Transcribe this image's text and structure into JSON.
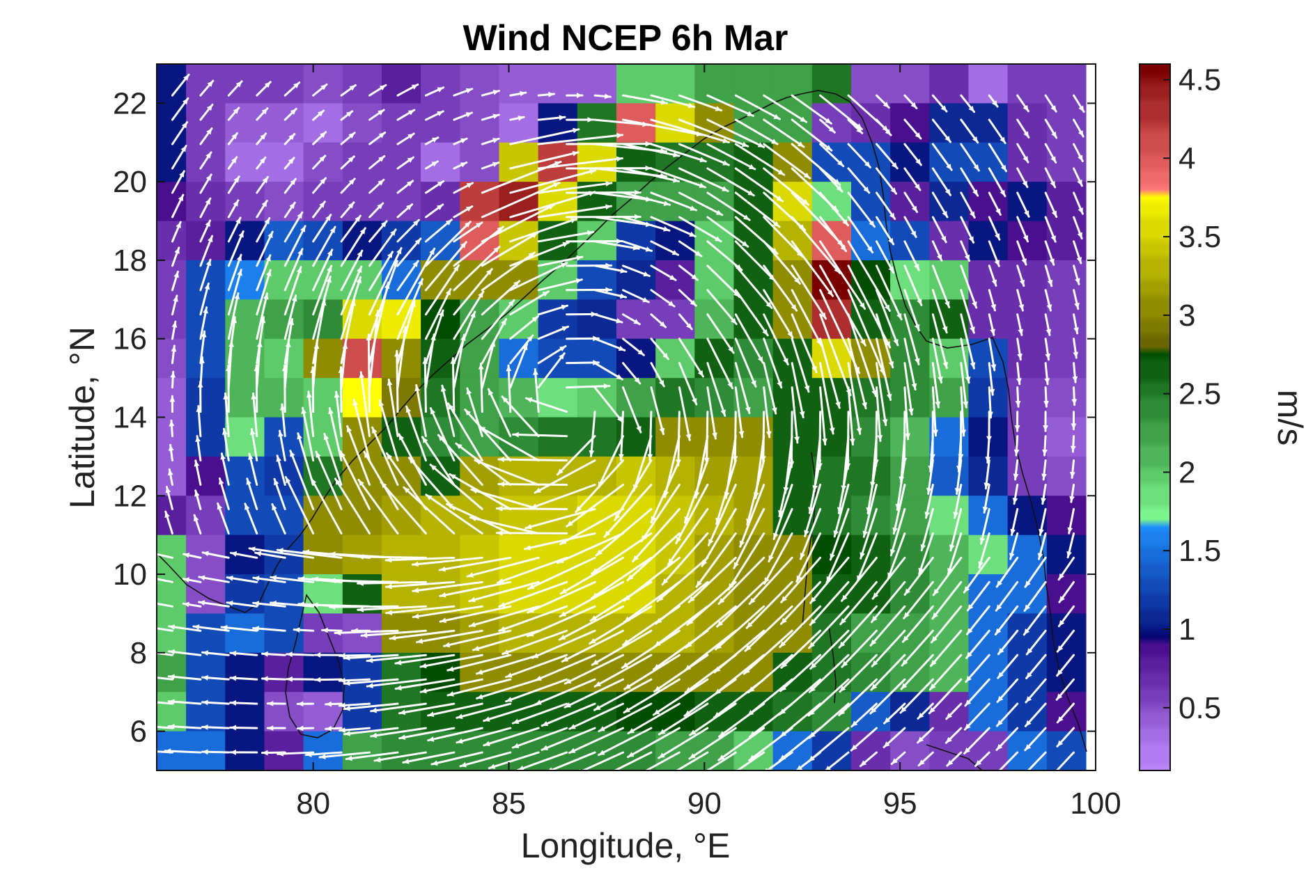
{
  "chart_data": {
    "type": "heatmap",
    "title": "Wind NCEP 6h Mar",
    "xlabel": "Longitude, °E",
    "ylabel": "Latitude, °N",
    "xlim": [
      76,
      100
    ],
    "ylim": [
      5,
      23
    ],
    "x_ticks": [
      80,
      85,
      90,
      95,
      100
    ],
    "y_ticks": [
      6,
      8,
      10,
      12,
      14,
      16,
      18,
      20,
      22
    ],
    "x_tick_labels": [
      "80",
      "85",
      "90",
      "95",
      "100"
    ],
    "y_tick_labels": [
      "6",
      "8",
      "10",
      "12",
      "14",
      "16",
      "18",
      "20",
      "22"
    ],
    "grid": false,
    "colorbar": {
      "label": "m/s",
      "range": [
        0.1,
        4.6
      ],
      "ticks": [
        0.5,
        1,
        1.5,
        2,
        2.5,
        3,
        3.5,
        4,
        4.5
      ],
      "tick_labels": [
        "0.5",
        "1",
        "1.5",
        "2",
        "2.5",
        "3",
        "3.5",
        "4",
        "4.5"
      ],
      "segments": [
        {
          "from": 0.1,
          "to": 0.9,
          "low": "#c08cff",
          "high": "#4a0f8f"
        },
        {
          "from": 0.9,
          "to": 1.7,
          "low": "#050570",
          "high": "#1e90ff"
        },
        {
          "from": 1.7,
          "to": 2.8,
          "low": "#7df58f",
          "high": "#004d00"
        },
        {
          "from": 2.8,
          "to": 3.8,
          "low": "#6b6600",
          "high": "#ffff00"
        },
        {
          "from": 3.8,
          "to": 4.6,
          "low": "#ff7a7a",
          "high": "#7a0000"
        }
      ]
    },
    "grid_lon_start": 76.25,
    "grid_lat_top": 22.5,
    "grid_step": 1,
    "cols": 24,
    "rows": 18,
    "speed": [
      [
        1.0,
        0.6,
        0.6,
        0.6,
        0.5,
        0.6,
        0.8,
        0.6,
        0.5,
        0.4,
        0.4,
        0.4,
        2.0,
        2.0,
        2.3,
        2.3,
        2.2,
        2.5,
        0.5,
        0.5,
        0.7,
        0.3,
        0.6,
        0.6
      ],
      [
        1.0,
        0.6,
        0.4,
        0.4,
        0.3,
        0.5,
        0.6,
        0.6,
        0.5,
        0.3,
        1.0,
        2.5,
        4.0,
        3.6,
        3.0,
        2.2,
        2.3,
        0.6,
        0.7,
        0.9,
        1.1,
        1.1,
        0.7,
        0.6
      ],
      [
        1.0,
        0.6,
        0.3,
        0.3,
        0.5,
        0.6,
        0.6,
        0.3,
        0.5,
        3.4,
        4.2,
        3.5,
        2.7,
        2.5,
        2.5,
        2.7,
        3.0,
        1.3,
        1.3,
        1.0,
        1.3,
        1.3,
        0.7,
        0.6
      ],
      [
        0.9,
        0.7,
        0.6,
        0.5,
        0.6,
        0.6,
        0.6,
        0.7,
        4.2,
        4.4,
        3.6,
        2.7,
        2.2,
        2.2,
        2.3,
        2.6,
        3.6,
        1.9,
        1.3,
        0.8,
        1.1,
        0.9,
        1.0,
        0.8
      ],
      [
        0.7,
        0.8,
        1.0,
        1.4,
        1.3,
        1.0,
        1.2,
        1.4,
        4.0,
        3.4,
        2.6,
        2.0,
        1.2,
        1.0,
        2.0,
        2.6,
        3.3,
        4.0,
        1.5,
        1.3,
        0.7,
        1.0,
        0.9,
        0.8
      ],
      [
        0.6,
        1.3,
        1.6,
        2.0,
        2.0,
        2.0,
        1.5,
        3.0,
        3.1,
        3.0,
        2.0,
        1.3,
        1.1,
        0.8,
        2.0,
        2.6,
        3.0,
        4.6,
        2.8,
        1.9,
        2.0,
        0.7,
        0.7,
        0.6
      ],
      [
        0.6,
        1.3,
        2.1,
        2.3,
        2.4,
        3.6,
        3.7,
        2.8,
        2.3,
        2.0,
        1.2,
        1.1,
        0.6,
        0.6,
        2.1,
        2.6,
        3.0,
        4.3,
        2.6,
        2.4,
        2.6,
        0.7,
        0.7,
        0.6
      ],
      [
        0.5,
        1.3,
        2.1,
        2.0,
        3.1,
        4.1,
        3.1,
        2.6,
        2.3,
        1.5,
        1.3,
        1.3,
        1.0,
        2.0,
        2.6,
        2.4,
        2.6,
        3.5,
        3.0,
        2.4,
        2.0,
        1.3,
        0.7,
        0.6
      ],
      [
        0.4,
        1.2,
        2.1,
        2.1,
        2.0,
        3.8,
        2.9,
        2.5,
        2.2,
        2.1,
        1.9,
        2.0,
        2.2,
        2.5,
        2.4,
        2.3,
        2.6,
        2.7,
        2.5,
        2.4,
        2.2,
        1.2,
        0.6,
        0.5
      ],
      [
        0.4,
        1.2,
        1.9,
        1.3,
        2.0,
        3.1,
        2.7,
        2.4,
        2.3,
        2.4,
        2.5,
        2.5,
        2.7,
        3.0,
        3.0,
        3.0,
        2.7,
        2.6,
        2.4,
        2.1,
        1.5,
        1.0,
        0.6,
        0.4
      ],
      [
        0.4,
        0.9,
        1.3,
        1.2,
        2.5,
        3.0,
        3.0,
        2.7,
        3.2,
        3.3,
        3.3,
        3.3,
        3.4,
        3.3,
        3.2,
        3.2,
        2.7,
        2.5,
        2.5,
        2.3,
        1.4,
        1.1,
        0.6,
        0.5
      ],
      [
        0.8,
        0.6,
        1.3,
        1.3,
        3.0,
        3.1,
        3.2,
        3.3,
        3.3,
        3.4,
        3.4,
        3.5,
        3.5,
        3.4,
        3.3,
        3.2,
        2.7,
        2.5,
        2.4,
        2.2,
        1.9,
        1.5,
        1.0,
        0.9
      ],
      [
        2.0,
        0.5,
        1.0,
        1.2,
        3.1,
        3.2,
        3.3,
        3.3,
        3.4,
        3.5,
        3.6,
        3.6,
        3.5,
        3.4,
        3.2,
        3.1,
        3.0,
        2.8,
        2.6,
        2.4,
        2.1,
        1.9,
        1.5,
        1.0
      ],
      [
        2.0,
        0.5,
        1.2,
        1.3,
        1.9,
        2.7,
        3.3,
        3.3,
        3.4,
        3.5,
        3.5,
        3.6,
        3.5,
        3.3,
        3.2,
        3.1,
        3.1,
        2.7,
        2.6,
        2.4,
        2.1,
        1.5,
        1.5,
        0.9
      ],
      [
        2.0,
        1.3,
        1.5,
        1.3,
        0.6,
        0.5,
        3.0,
        3.1,
        3.2,
        3.3,
        3.3,
        3.3,
        3.3,
        3.3,
        3.2,
        3.1,
        3.1,
        2.5,
        2.3,
        2.2,
        2.1,
        1.5,
        1.2,
        1.0
      ],
      [
        2.2,
        1.3,
        1.0,
        0.8,
        1.0,
        1.2,
        2.5,
        2.8,
        3.0,
        3.1,
        3.1,
        3.1,
        3.1,
        3.1,
        3.1,
        3.0,
        2.7,
        2.5,
        2.4,
        2.2,
        2.1,
        1.5,
        1.2,
        1.0
      ],
      [
        2.0,
        1.3,
        1.0,
        0.5,
        0.4,
        1.2,
        2.5,
        2.6,
        2.6,
        2.6,
        2.7,
        2.7,
        2.8,
        2.8,
        2.7,
        2.6,
        2.5,
        2.4,
        1.4,
        1.1,
        0.7,
        1.5,
        1.2,
        0.9
      ],
      [
        1.5,
        1.5,
        1.0,
        0.8,
        1.5,
        2.3,
        2.4,
        2.4,
        2.4,
        2.4,
        2.4,
        2.4,
        2.4,
        2.3,
        2.2,
        2.0,
        1.5,
        1.2,
        0.7,
        0.5,
        0.6,
        0.6,
        1.5,
        1.3
      ]
    ],
    "wind_field": {
      "description_units": "arrows in m/s, direction from u/v",
      "vortex_center": [
        86.5,
        14.2
      ],
      "type": "anticyclonic-circulation"
    }
  }
}
